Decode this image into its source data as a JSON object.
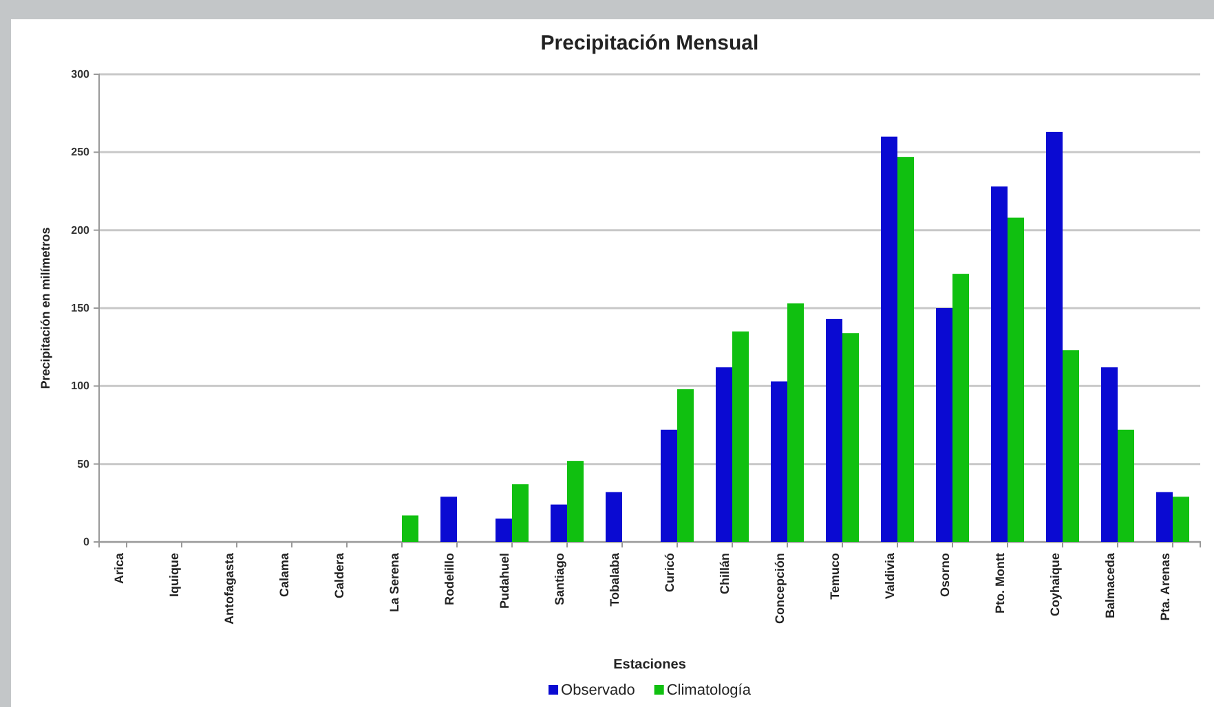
{
  "chart_data": {
    "type": "bar",
    "title": "Precipitación Mensual",
    "xlabel": "Estaciones",
    "ylabel": "Precipitación en milímetros",
    "categories": [
      "Arica",
      "Iquique",
      "Antofagasta",
      "Calama",
      "Caldera",
      "La Serena",
      "Rodelillo",
      "Pudahuel",
      "Santiago",
      "Tobalaba",
      "Curicó",
      "Chillán",
      "Concepción",
      "Temuco",
      "Valdivia",
      "Osorno",
      "Pto. Montt",
      "Coyhaique",
      "Balmaceda",
      "Pta. Arenas"
    ],
    "series": [
      {
        "name": "Observado",
        "color": "#0a0ad2",
        "values": [
          0,
          0,
          0,
          0,
          0,
          0,
          29,
          15,
          24,
          32,
          72,
          112,
          103,
          143,
          260,
          150,
          228,
          263,
          112,
          32
        ]
      },
      {
        "name": "Climatología",
        "color": "#10c010",
        "values": [
          0,
          0,
          0,
          0,
          0,
          17,
          0,
          37,
          52,
          0,
          98,
          135,
          153,
          134,
          247,
          172,
          208,
          123,
          72,
          29
        ]
      }
    ],
    "ylim": [
      0,
      300
    ],
    "yticks": [
      0,
      50,
      100,
      150,
      200,
      250,
      300
    ],
    "grid": "y",
    "legend": "bottom"
  }
}
